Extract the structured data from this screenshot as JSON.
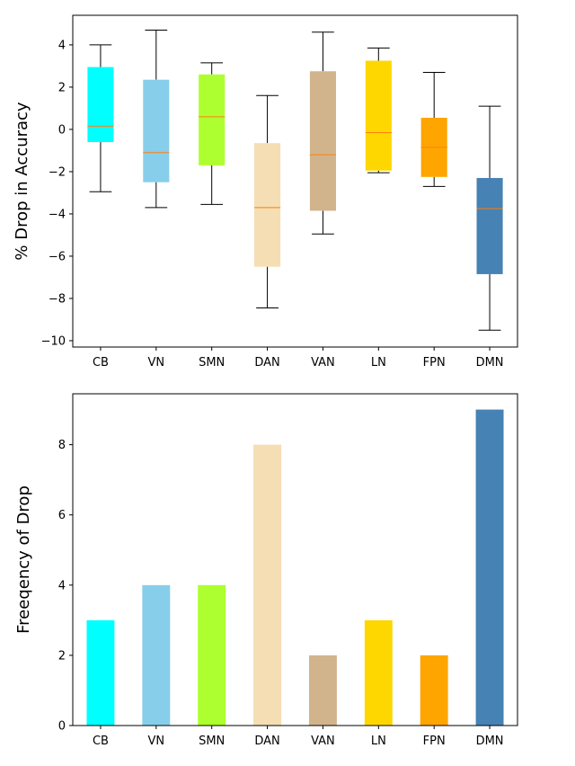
{
  "chart_data": [
    {
      "type": "box",
      "title": "",
      "xlabel": "",
      "ylabel": "% Drop in Accuracy",
      "ylim": [
        -10.3,
        5.4
      ],
      "yticks": [
        4,
        2,
        0,
        -2,
        -4,
        -6,
        -8,
        -10
      ],
      "ytick_labels": [
        "4",
        "2",
        "0",
        "−2",
        "−4",
        "−6",
        "−8",
        "−10"
      ],
      "categories": [
        "CB",
        "VN",
        "SMN",
        "DAN",
        "VAN",
        "LN",
        "FPN",
        "DMN"
      ],
      "boxes": [
        {
          "label": "CB",
          "whislo": -2.95,
          "q1": -0.6,
          "med": 0.15,
          "q3": 2.95,
          "whishi": 4.0,
          "color": "#00FFFF"
        },
        {
          "label": "VN",
          "whislo": -3.7,
          "q1": -2.5,
          "med": -1.1,
          "q3": 2.35,
          "whishi": 4.7,
          "color": "#87CEEB"
        },
        {
          "label": "SMN",
          "whislo": -3.55,
          "q1": -1.7,
          "med": 0.6,
          "q3": 2.6,
          "whishi": 3.15,
          "color": "#ADFF2F"
        },
        {
          "label": "DAN",
          "whislo": -8.45,
          "q1": -6.5,
          "med": -3.7,
          "q3": -0.65,
          "whishi": 1.6,
          "color": "#F5DEB3"
        },
        {
          "label": "VAN",
          "whislo": -4.95,
          "q1": -3.85,
          "med": -1.2,
          "q3": 2.75,
          "whishi": 4.6,
          "color": "#D2B48C"
        },
        {
          "label": "LN",
          "whislo": -2.05,
          "q1": -1.95,
          "med": -0.15,
          "q3": 3.25,
          "whishi": 3.85,
          "color": "#FFD700"
        },
        {
          "label": "FPN",
          "whislo": -2.7,
          "q1": -2.25,
          "med": -0.85,
          "q3": 0.55,
          "whishi": 2.7,
          "color": "#FFA500"
        },
        {
          "label": "DMN",
          "whislo": -9.5,
          "q1": -6.85,
          "med": -3.75,
          "q3": -2.3,
          "whishi": 1.1,
          "color": "#4682B4"
        }
      ],
      "median_color": "#FF7F0E",
      "grid": false
    },
    {
      "type": "bar",
      "title": "",
      "xlabel": "",
      "ylabel": "Freeqency of Drop",
      "ylim": [
        0,
        9.45
      ],
      "yticks": [
        0,
        2,
        4,
        6,
        8
      ],
      "ytick_labels": [
        "0",
        "2",
        "4",
        "6",
        "8"
      ],
      "categories": [
        "CB",
        "VN",
        "SMN",
        "DAN",
        "VAN",
        "LN",
        "FPN",
        "DMN"
      ],
      "values": [
        3,
        4,
        4,
        8,
        2,
        3,
        2,
        9
      ],
      "colors": [
        "#00FFFF",
        "#87CEEB",
        "#ADFF2F",
        "#F5DEB3",
        "#D2B48C",
        "#FFD700",
        "#FFA500",
        "#4682B4"
      ],
      "grid": false
    }
  ]
}
